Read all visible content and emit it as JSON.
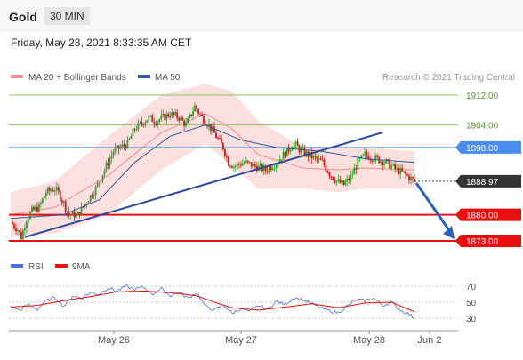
{
  "header": {
    "symbol": "Gold",
    "timeframe": "30 MIN"
  },
  "datetime": "Friday, May 28, 2021 8:33:35 AM CET",
  "legend": {
    "bollinger": "MA 20 + Bollinger Bands",
    "ma50": "MA 50",
    "rsi": "RSI",
    "rsi_ma": "9MA"
  },
  "watermark": "Research © 2021 Trading Central",
  "colors": {
    "bollinger": "#f48c8c",
    "band_fill": "#fbd9d9",
    "ma50": "#2d5a9a",
    "up": "#27a827",
    "down": "#c41b1b",
    "support": "#e81010",
    "resistance": "#8fc65c",
    "pivot": "#4a8cf0",
    "last": "#333333",
    "trendline": "#2d4a9a",
    "arrow": "#2b62b5"
  },
  "chart_data": [
    {
      "type": "candlestick",
      "title": "Gold 30 MIN",
      "y_range": [
        1870,
        1920
      ],
      "x_labels": [
        "May 26",
        "May 27",
        "May 28",
        "Jun 2"
      ],
      "levels": [
        {
          "label": "1912.00",
          "value": 1912.0,
          "kind": "resistance"
        },
        {
          "label": "1904.00",
          "value": 1904.0,
          "kind": "resistance"
        },
        {
          "label": "1898.00",
          "value": 1898.0,
          "kind": "pivot"
        },
        {
          "label": "1888.97",
          "value": 1888.97,
          "kind": "last"
        },
        {
          "label": "1880.00",
          "value": 1880.0,
          "kind": "support"
        },
        {
          "label": "1873.00",
          "value": 1873.0,
          "kind": "support"
        }
      ],
      "anchors": [
        [
          0,
          1878
        ],
        [
          4,
          1876
        ],
        [
          6,
          1874
        ],
        [
          9,
          1879
        ],
        [
          12,
          1881
        ],
        [
          16,
          1882
        ],
        [
          20,
          1886
        ],
        [
          25,
          1887
        ],
        [
          28,
          1885
        ],
        [
          33,
          1880
        ],
        [
          38,
          1880
        ],
        [
          45,
          1885
        ],
        [
          48,
          1887
        ],
        [
          55,
          1894
        ],
        [
          58,
          1897
        ],
        [
          66,
          1899
        ],
        [
          70,
          1903
        ],
        [
          78,
          1906
        ],
        [
          82,
          1905
        ],
        [
          90,
          1907
        ],
        [
          95,
          1906
        ],
        [
          99,
          1904
        ],
        [
          104,
          1909
        ],
        [
          108,
          1906
        ],
        [
          112,
          1904
        ],
        [
          116,
          1901
        ],
        [
          120,
          1898
        ],
        [
          123,
          1894
        ],
        [
          126,
          1893
        ],
        [
          132,
          1894
        ],
        [
          138,
          1893
        ],
        [
          144,
          1892
        ],
        [
          150,
          1894
        ],
        [
          156,
          1897
        ],
        [
          160,
          1899
        ],
        [
          164,
          1897
        ],
        [
          168,
          1896
        ],
        [
          172,
          1895
        ],
        [
          176,
          1894
        ],
        [
          180,
          1891
        ],
        [
          184,
          1889
        ],
        [
          188,
          1888
        ],
        [
          192,
          1890
        ],
        [
          196,
          1894
        ],
        [
          200,
          1896
        ],
        [
          206,
          1895
        ],
        [
          212,
          1894
        ],
        [
          218,
          1892
        ],
        [
          222,
          1891
        ],
        [
          228,
          1888.97
        ]
      ],
      "bollinger_upper": [
        [
          0,
          1886
        ],
        [
          25,
          1889
        ],
        [
          55,
          1901
        ],
        [
          85,
          1912
        ],
        [
          110,
          1915
        ],
        [
          125,
          1913
        ],
        [
          140,
          1905
        ],
        [
          165,
          1898
        ],
        [
          185,
          1898
        ],
        [
          200,
          1898
        ],
        [
          228,
          1897
        ]
      ],
      "bollinger_lower": [
        [
          0,
          1874
        ],
        [
          25,
          1875
        ],
        [
          55,
          1880
        ],
        [
          85,
          1892
        ],
        [
          110,
          1899
        ],
        [
          125,
          1893
        ],
        [
          140,
          1887
        ],
        [
          165,
          1887
        ],
        [
          185,
          1886
        ],
        [
          200,
          1887
        ],
        [
          228,
          1887
        ]
      ],
      "ma50": [
        [
          0,
          1879
        ],
        [
          30,
          1880
        ],
        [
          50,
          1884
        ],
        [
          70,
          1894
        ],
        [
          90,
          1901
        ],
        [
          110,
          1904
        ],
        [
          130,
          1900
        ],
        [
          150,
          1898
        ],
        [
          175,
          1897
        ],
        [
          200,
          1895
        ],
        [
          228,
          1894
        ]
      ],
      "trendline": [
        [
          8,
          1874
        ],
        [
          210,
          1902
        ]
      ]
    },
    {
      "type": "line",
      "title": "RSI",
      "y_ticks": [
        70,
        50,
        30
      ],
      "y_range": [
        20,
        80
      ],
      "rsi": [
        [
          0,
          45
        ],
        [
          5,
          40
        ],
        [
          10,
          47
        ],
        [
          15,
          41
        ],
        [
          20,
          52
        ],
        [
          25,
          56
        ],
        [
          30,
          45
        ],
        [
          35,
          58
        ],
        [
          40,
          55
        ],
        [
          45,
          62
        ],
        [
          50,
          60
        ],
        [
          55,
          68
        ],
        [
          60,
          64
        ],
        [
          65,
          70
        ],
        [
          70,
          66
        ],
        [
          75,
          69
        ],
        [
          80,
          60
        ],
        [
          85,
          67
        ],
        [
          90,
          58
        ],
        [
          95,
          63
        ],
        [
          100,
          55
        ],
        [
          105,
          62
        ],
        [
          110,
          45
        ],
        [
          115,
          40
        ],
        [
          120,
          47
        ],
        [
          125,
          36
        ],
        [
          130,
          42
        ],
        [
          135,
          38
        ],
        [
          140,
          46
        ],
        [
          145,
          41
        ],
        [
          150,
          51
        ],
        [
          155,
          47
        ],
        [
          160,
          56
        ],
        [
          165,
          53
        ],
        [
          170,
          48
        ],
        [
          175,
          43
        ],
        [
          180,
          39
        ],
        [
          185,
          37
        ],
        [
          190,
          45
        ],
        [
          195,
          53
        ],
        [
          200,
          52
        ],
        [
          205,
          55
        ],
        [
          210,
          46
        ],
        [
          215,
          50
        ],
        [
          220,
          40
        ],
        [
          225,
          35
        ],
        [
          228,
          30
        ]
      ],
      "rsi_ma": [
        [
          0,
          44
        ],
        [
          15,
          46
        ],
        [
          30,
          52
        ],
        [
          45,
          57
        ],
        [
          60,
          63
        ],
        [
          75,
          64
        ],
        [
          90,
          62
        ],
        [
          105,
          58
        ],
        [
          115,
          50
        ],
        [
          125,
          43
        ],
        [
          140,
          40
        ],
        [
          155,
          44
        ],
        [
          170,
          48
        ],
        [
          185,
          43
        ],
        [
          200,
          49
        ],
        [
          215,
          50
        ],
        [
          228,
          38
        ]
      ]
    }
  ]
}
